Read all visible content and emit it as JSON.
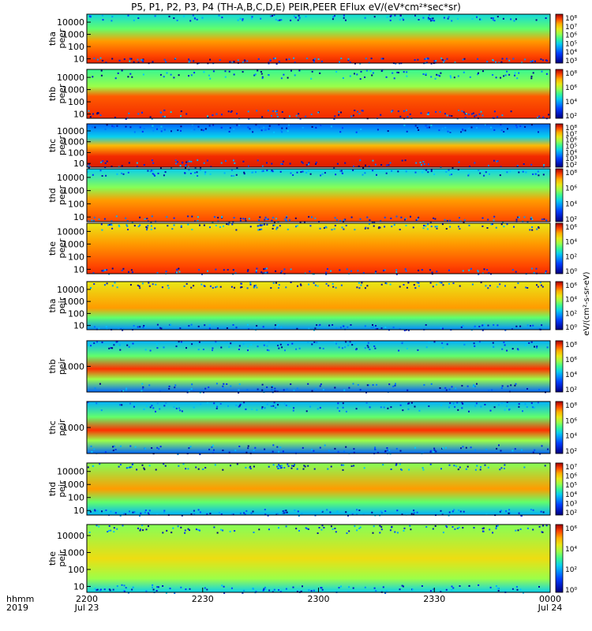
{
  "title": "P5, P1, P2, P3, P4 (TH-A,B,C,D,E) PEIR,PEER EFlux eV/(eV*cm²*sec*sr)",
  "time_axis": {
    "row1_label": "hhmm",
    "row2_label": "2019",
    "ticks": [
      {
        "t": 0,
        "label": "2200",
        "date": "Jul 23"
      },
      {
        "t": 30,
        "label": "2230",
        "date": ""
      },
      {
        "t": 60,
        "label": "2300",
        "date": ""
      },
      {
        "t": 90,
        "label": "2330",
        "date": ""
      },
      {
        "t": 120,
        "label": "0000",
        "date": "Jul 24"
      }
    ]
  },
  "colorbar_label": "eV/(cm²-s-sr-eV)",
  "chart_data": [
    {
      "type": "heatmap",
      "probe": "tha",
      "ylabel": [
        "tha",
        "peer"
      ],
      "y_ticks": [
        "10",
        "100",
        "1000",
        "10000"
      ],
      "cbar_ticks": [
        "10⁸",
        "10⁷",
        "10⁶",
        "10⁵",
        "10⁴",
        "10³"
      ],
      "ylim": [
        7,
        25000
      ],
      "yscale": "log",
      "clim": [
        1000,
        100000000
      ],
      "dominant": "orange-red band below ~300 eV, green/blue above ~3000 eV"
    },
    {
      "type": "heatmap",
      "probe": "thb",
      "ylabel": [
        "thb",
        "peer"
      ],
      "y_ticks": [
        "10",
        "100",
        "1000",
        "10000"
      ],
      "cbar_ticks": [
        "10⁸",
        "10⁶",
        "10⁴",
        "10²"
      ],
      "ylim": [
        7,
        25000
      ],
      "yscale": "log",
      "clim": [
        100,
        100000000
      ],
      "dominant": "uniform red band 10-300 eV, green above 1000 eV"
    },
    {
      "type": "heatmap",
      "probe": "thc",
      "ylabel": [
        "thc",
        "peer"
      ],
      "y_ticks": [
        "10",
        "100",
        "1000",
        "10000"
      ],
      "cbar_ticks": [
        "10⁸",
        "10⁷",
        "10⁶",
        "10⁵",
        "10⁴",
        "10³",
        "10²"
      ],
      "ylim": [
        7,
        25000
      ],
      "yscale": "log",
      "clim": [
        100,
        100000000
      ],
      "dominant": "uniform red band 20-200 eV, blue above 3000 eV"
    },
    {
      "type": "heatmap",
      "probe": "thd",
      "ylabel": [
        "thd",
        "peer"
      ],
      "y_ticks": [
        "10",
        "100",
        "1000",
        "10000"
      ],
      "cbar_ticks": [
        "10⁸",
        "10⁶",
        "10⁴",
        "10²"
      ],
      "ylim": [
        7,
        25000
      ],
      "yscale": "log",
      "clim": [
        100,
        100000000
      ],
      "dominant": "orange band below ~500 eV, green above"
    },
    {
      "type": "heatmap",
      "probe": "the",
      "ylabel": [
        "the",
        "peer"
      ],
      "y_ticks": [
        "10",
        "100",
        "1000",
        "10000"
      ],
      "cbar_ticks": [
        "10⁶",
        "10⁴",
        "10²",
        "10⁰"
      ],
      "ylim": [
        7,
        25000
      ],
      "yscale": "log",
      "clim": [
        1,
        1000000
      ],
      "dominant": "yellow/orange broadband, red after 2230"
    },
    {
      "type": "heatmap",
      "probe": "tha",
      "ylabel": [
        "tha",
        "peir"
      ],
      "y_ticks": [
        "10",
        "100",
        "1000",
        "10000"
      ],
      "cbar_ticks": [
        "10⁶",
        "10⁴",
        "10²",
        "10⁰"
      ],
      "ylim": [
        7,
        25000
      ],
      "yscale": "log",
      "clim": [
        1,
        1000000
      ],
      "dominant": "orange band 300-10000 eV, noisy below 30 eV"
    },
    {
      "type": "heatmap",
      "probe": "thb",
      "ylabel": [
        "thb",
        "peir"
      ],
      "y_ticks": [
        "1000"
      ],
      "cbar_ticks": [
        "10⁸",
        "10⁶",
        "10⁴",
        "10²"
      ],
      "ylim": [
        400,
        25000
      ],
      "yscale": "log",
      "clim": [
        100,
        100000000
      ],
      "dominant": "red band near 1000 eV"
    },
    {
      "type": "heatmap",
      "probe": "thc",
      "ylabel": [
        "thc",
        "peir"
      ],
      "y_ticks": [
        "1000"
      ],
      "cbar_ticks": [
        "10⁸",
        "10⁶",
        "10⁴",
        "10²"
      ],
      "ylim": [
        400,
        25000
      ],
      "yscale": "log",
      "clim": [
        100,
        100000000
      ],
      "dominant": "red band near 1000 eV"
    },
    {
      "type": "heatmap",
      "probe": "thd",
      "ylabel": [
        "thd",
        "peir"
      ],
      "y_ticks": [
        "10",
        "100",
        "1000",
        "10000"
      ],
      "cbar_ticks": [
        "10⁷",
        "10⁶",
        "10⁵",
        "10⁴",
        "10³",
        "10²"
      ],
      "ylim": [
        7,
        25000
      ],
      "yscale": "log",
      "clim": [
        100,
        10000000
      ],
      "dominant": "orange band 1000-10000 eV"
    },
    {
      "type": "heatmap",
      "probe": "the",
      "ylabel": [
        "the",
        "peir"
      ],
      "y_ticks": [
        "10",
        "100",
        "1000",
        "10000"
      ],
      "cbar_ticks": [
        "10⁶",
        "10⁴",
        "10²",
        "10⁰"
      ],
      "ylim": [
        7,
        25000
      ],
      "yscale": "log",
      "clim": [
        1,
        1000000
      ],
      "dominant": "yellow/green broadband"
    }
  ]
}
